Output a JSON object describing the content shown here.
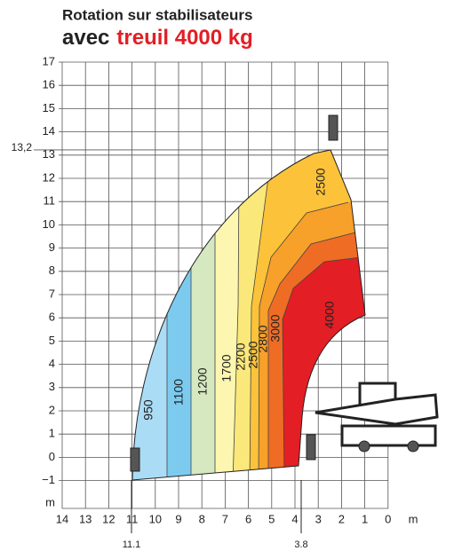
{
  "header": {
    "line1": "Rotation sur stabilisateurs",
    "line2_prefix": "avec",
    "line2_highlight": "treuil 4000 kg"
  },
  "y_axis": {
    "labels": [
      "17",
      "16",
      "15",
      "14",
      "13",
      "12",
      "11",
      "10",
      "9",
      "8",
      "7",
      "6",
      "5",
      "4",
      "3",
      "2",
      "1",
      "0",
      "−1"
    ],
    "unit": "m",
    "marker": "13,2"
  },
  "x_axis": {
    "labels": [
      "14",
      "13",
      "12",
      "11",
      "10",
      "9",
      "8",
      "7",
      "6",
      "5",
      "4",
      "3",
      "2",
      "1",
      "0"
    ],
    "unit": "m",
    "markers": [
      "11.1",
      "3.8"
    ]
  },
  "zones": [
    {
      "label": "950"
    },
    {
      "label": "1100"
    },
    {
      "label": "1200"
    },
    {
      "label": "1700"
    },
    {
      "label": "2200"
    },
    {
      "label": "2500"
    },
    {
      "label": "2800"
    },
    {
      "label": "3000"
    },
    {
      "label": "4000"
    }
  ],
  "top_zone_label": "2500"
}
